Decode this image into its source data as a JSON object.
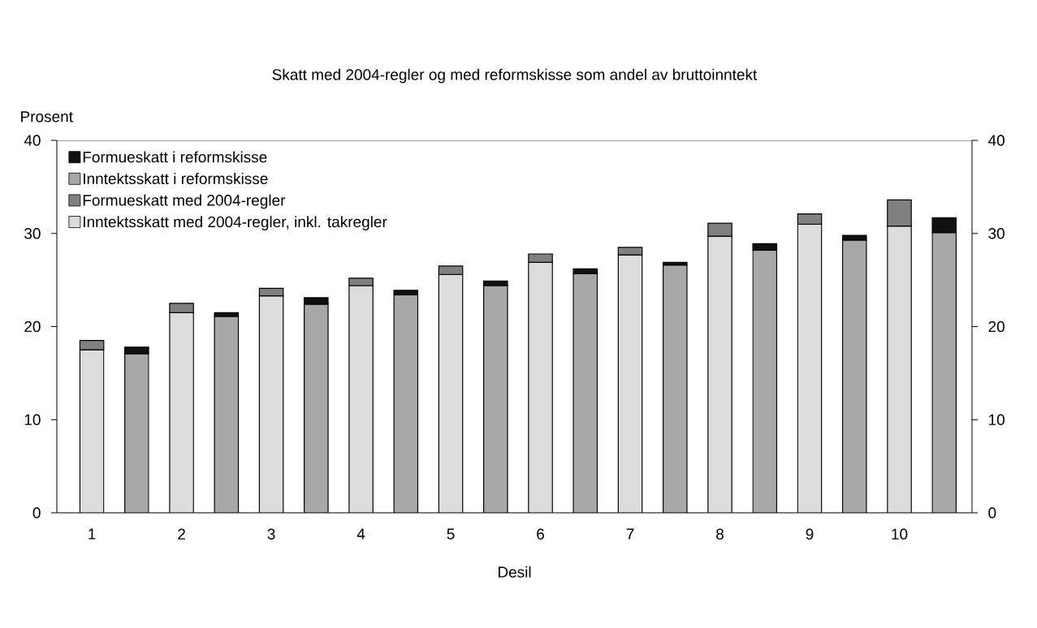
{
  "chart_data": {
    "type": "bar",
    "stacked": true,
    "title": "Skatt med 2004-regler og med reformskisse som andel av bruttoinntekt",
    "xlabel": "Desil",
    "ylabel": "Prosent",
    "categories": [
      "1",
      null,
      "2",
      null,
      "3",
      null,
      "4",
      null,
      "5",
      null,
      "6",
      null,
      "7",
      null,
      "8",
      null,
      "9",
      null,
      "10",
      null
    ],
    "series": [
      {
        "name": "Inntektsskatt med 2004-regler, inkl. takregler",
        "color": "#dcdcdc",
        "values": [
          17.5,
          null,
          21.5,
          null,
          23.3,
          null,
          24.4,
          null,
          25.6,
          null,
          26.9,
          null,
          27.7,
          null,
          29.7,
          null,
          31.0,
          null,
          30.8,
          null
        ]
      },
      {
        "name": "Formueskatt med 2004-regler",
        "color": "#808080",
        "values": [
          1.0,
          null,
          1.0,
          null,
          0.8,
          null,
          0.8,
          null,
          0.9,
          null,
          0.9,
          null,
          0.8,
          null,
          1.4,
          null,
          1.1,
          null,
          2.8,
          null
        ]
      },
      {
        "name": "Inntektsskatt i reformskisse",
        "color": "#a8a8a8",
        "values": [
          null,
          17.1,
          null,
          21.1,
          null,
          22.4,
          null,
          23.4,
          null,
          24.4,
          null,
          25.7,
          null,
          26.6,
          null,
          28.2,
          null,
          29.3,
          null,
          30.1
        ]
      },
      {
        "name": "Formueskatt i reformskisse",
        "color": "#111111",
        "values": [
          null,
          0.7,
          null,
          0.4,
          null,
          0.7,
          null,
          0.5,
          null,
          0.5,
          null,
          0.5,
          null,
          0.3,
          null,
          0.7,
          null,
          0.5,
          null,
          1.6
        ]
      }
    ],
    "legend": "top left",
    "ylim": [
      0,
      40
    ],
    "yticks": [
      0,
      10,
      20,
      30,
      40
    ],
    "y2lim": [
      0,
      40
    ],
    "y2ticks": [
      0,
      10,
      20,
      30,
      40
    ]
  }
}
